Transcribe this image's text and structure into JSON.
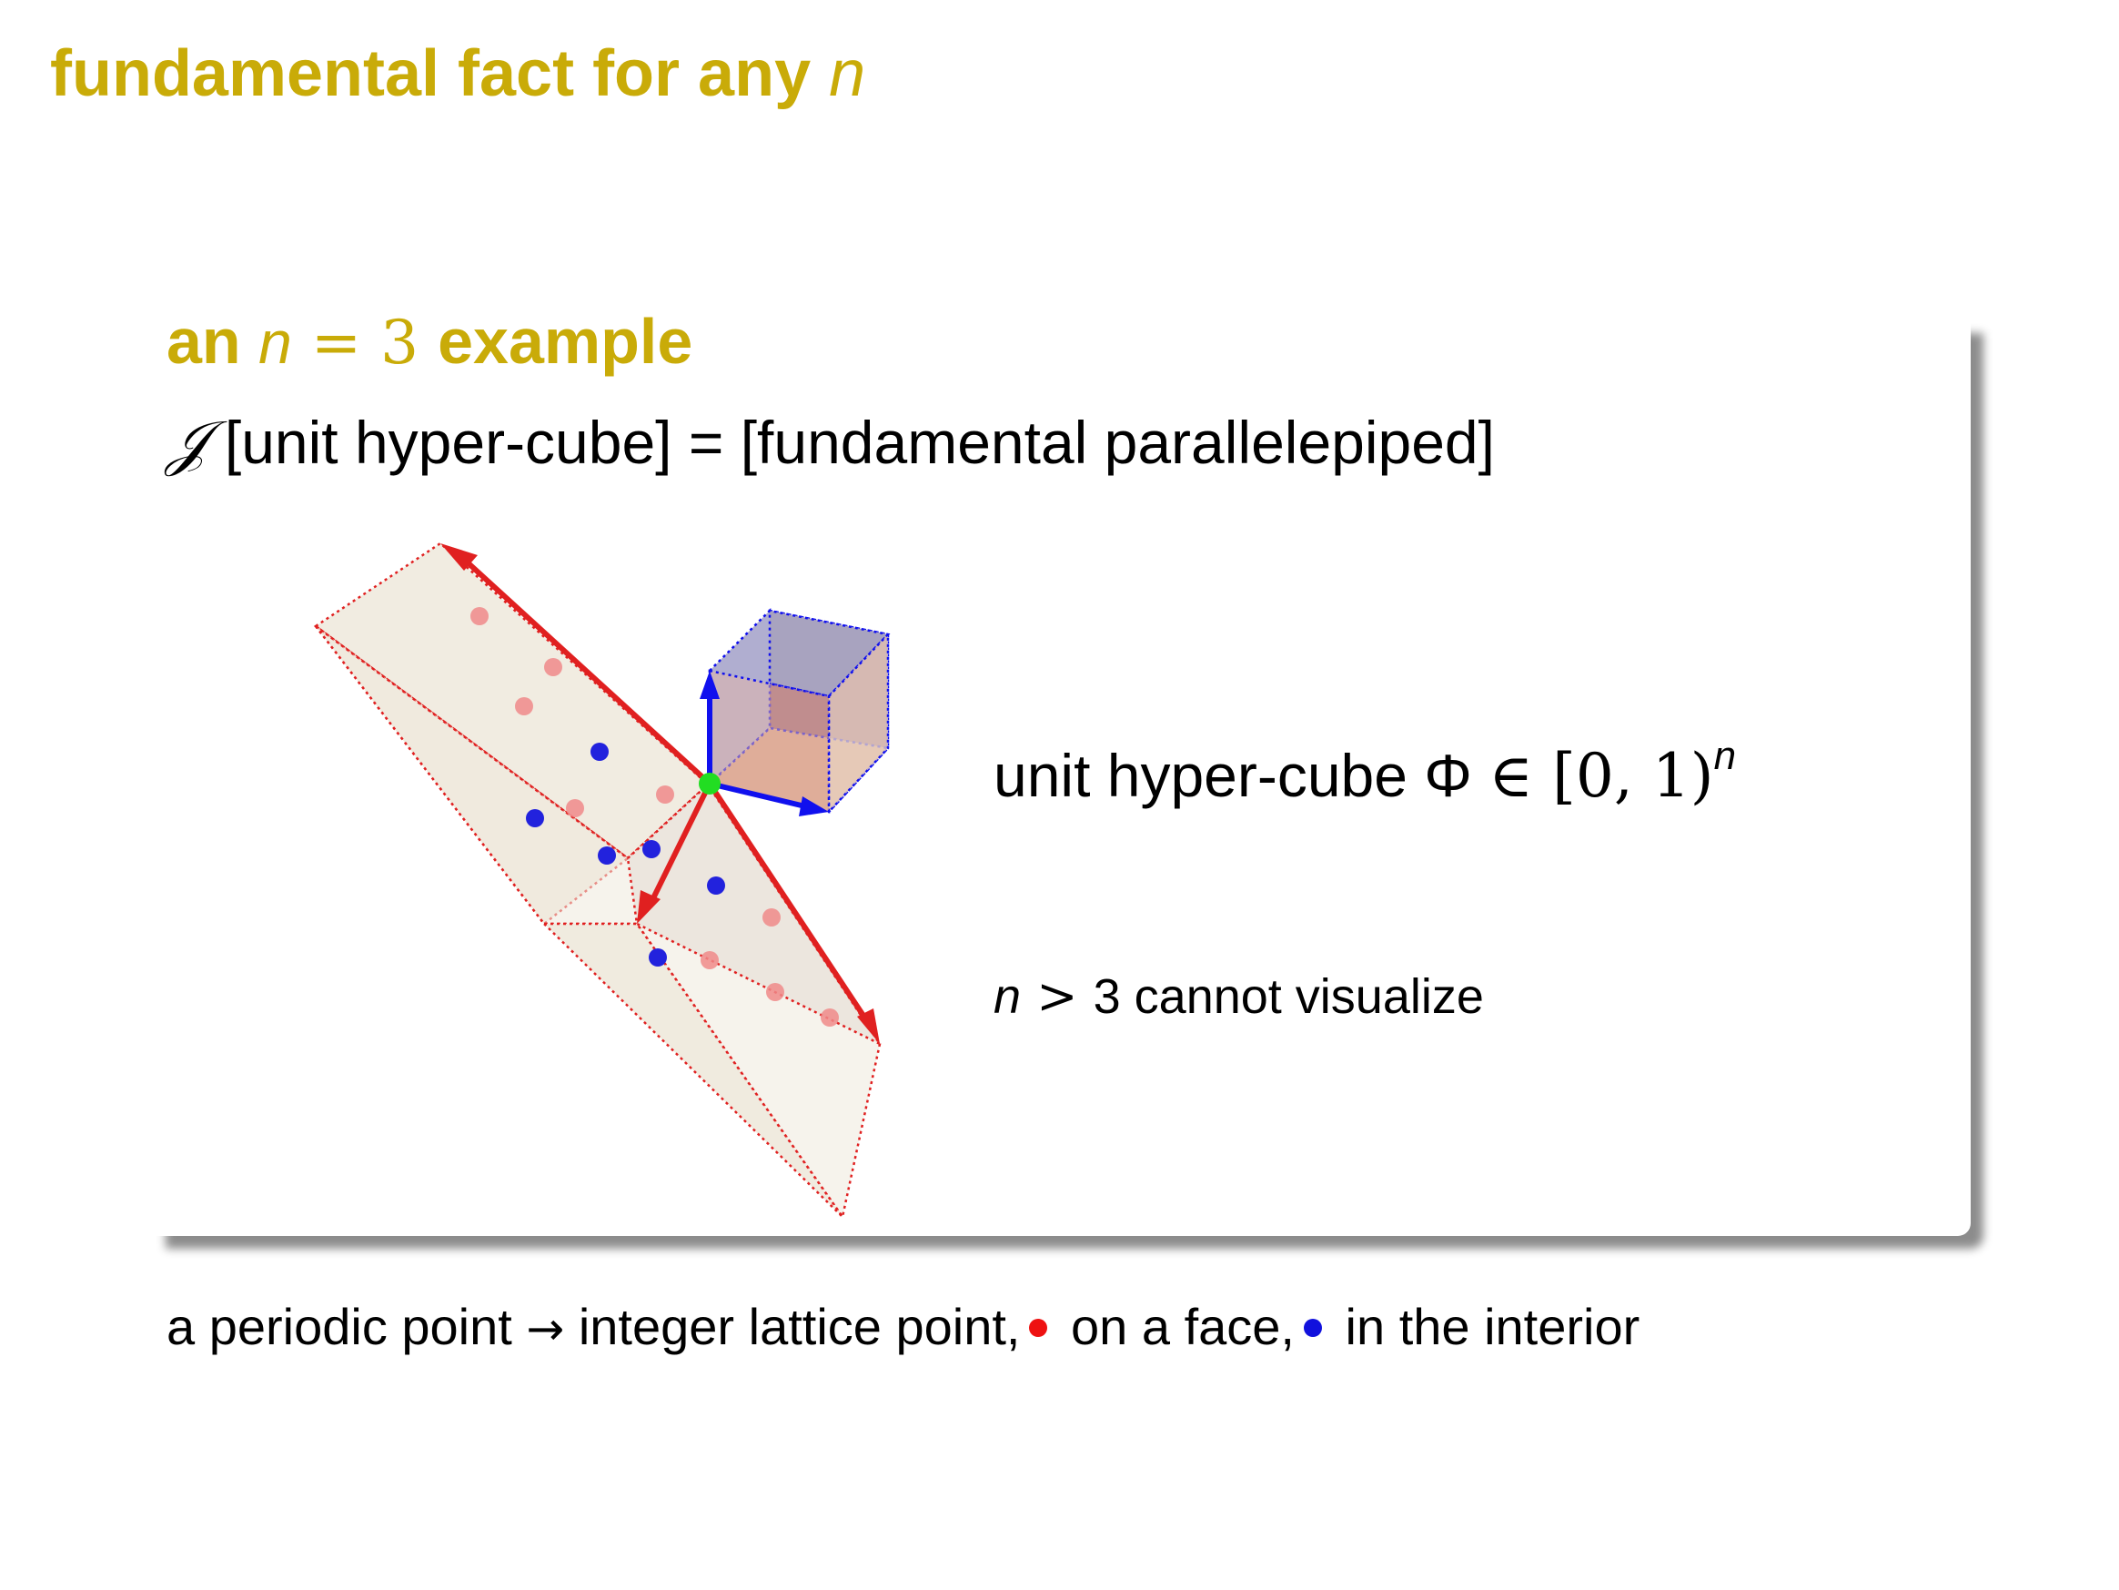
{
  "slide": {
    "title_text": "fundamental fact for any",
    "title_var": "n"
  },
  "block": {
    "title_prefix": "an",
    "title_math_var": "n",
    "title_math_rest": " = 3 ",
    "title_suffix": "example"
  },
  "formula": {
    "symbol": "𝒥",
    "text": " [unit hyper-cube] = [fundamental parallelepiped]"
  },
  "figure": {
    "cube_label_text": "unit hyper-cube Φ ",
    "cube_label_math": "∈ [0, 1)",
    "cube_label_exp": "n",
    "n_label_var": "n",
    "n_label_math": " > ",
    "n_label_rest": "3 cannot visualize",
    "colors": {
      "face_point": "#f08a8a",
      "interior_point": "#2222dd",
      "edge_red": "#e02020",
      "edge_blue": "#1010ee",
      "origin": "#22dd22",
      "parallelepiped_fill": "#eee9dc"
    }
  },
  "footer": {
    "part1": "a periodic point ",
    "arrow": "→",
    "part2": " integer lattice point,",
    "part3": " on a face,",
    "part4": " in the interior",
    "red_dot_color": "#ee1111",
    "blue_dot_color": "#1111dd"
  }
}
